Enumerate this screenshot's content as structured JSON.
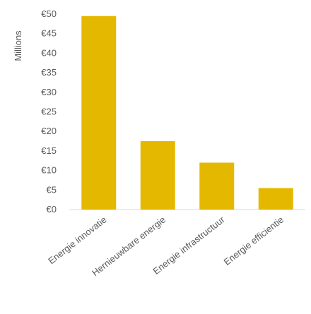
{
  "chart_data": {
    "type": "bar",
    "categories": [
      "Energie innovatie",
      "Hernieuwbare energie",
      "Energie infrastructuur",
      "Energie efficientie"
    ],
    "values": [
      49.5,
      17.5,
      12.0,
      5.5
    ],
    "ylabel": "Millions",
    "ylim": [
      0,
      50
    ],
    "yticks": [
      "€0",
      "€5",
      "€10",
      "€15",
      "€20",
      "€25",
      "€30",
      "€35",
      "€40",
      "€45",
      "€50"
    ],
    "bar_color": "#E5B800",
    "grid": false,
    "legend": "none"
  }
}
